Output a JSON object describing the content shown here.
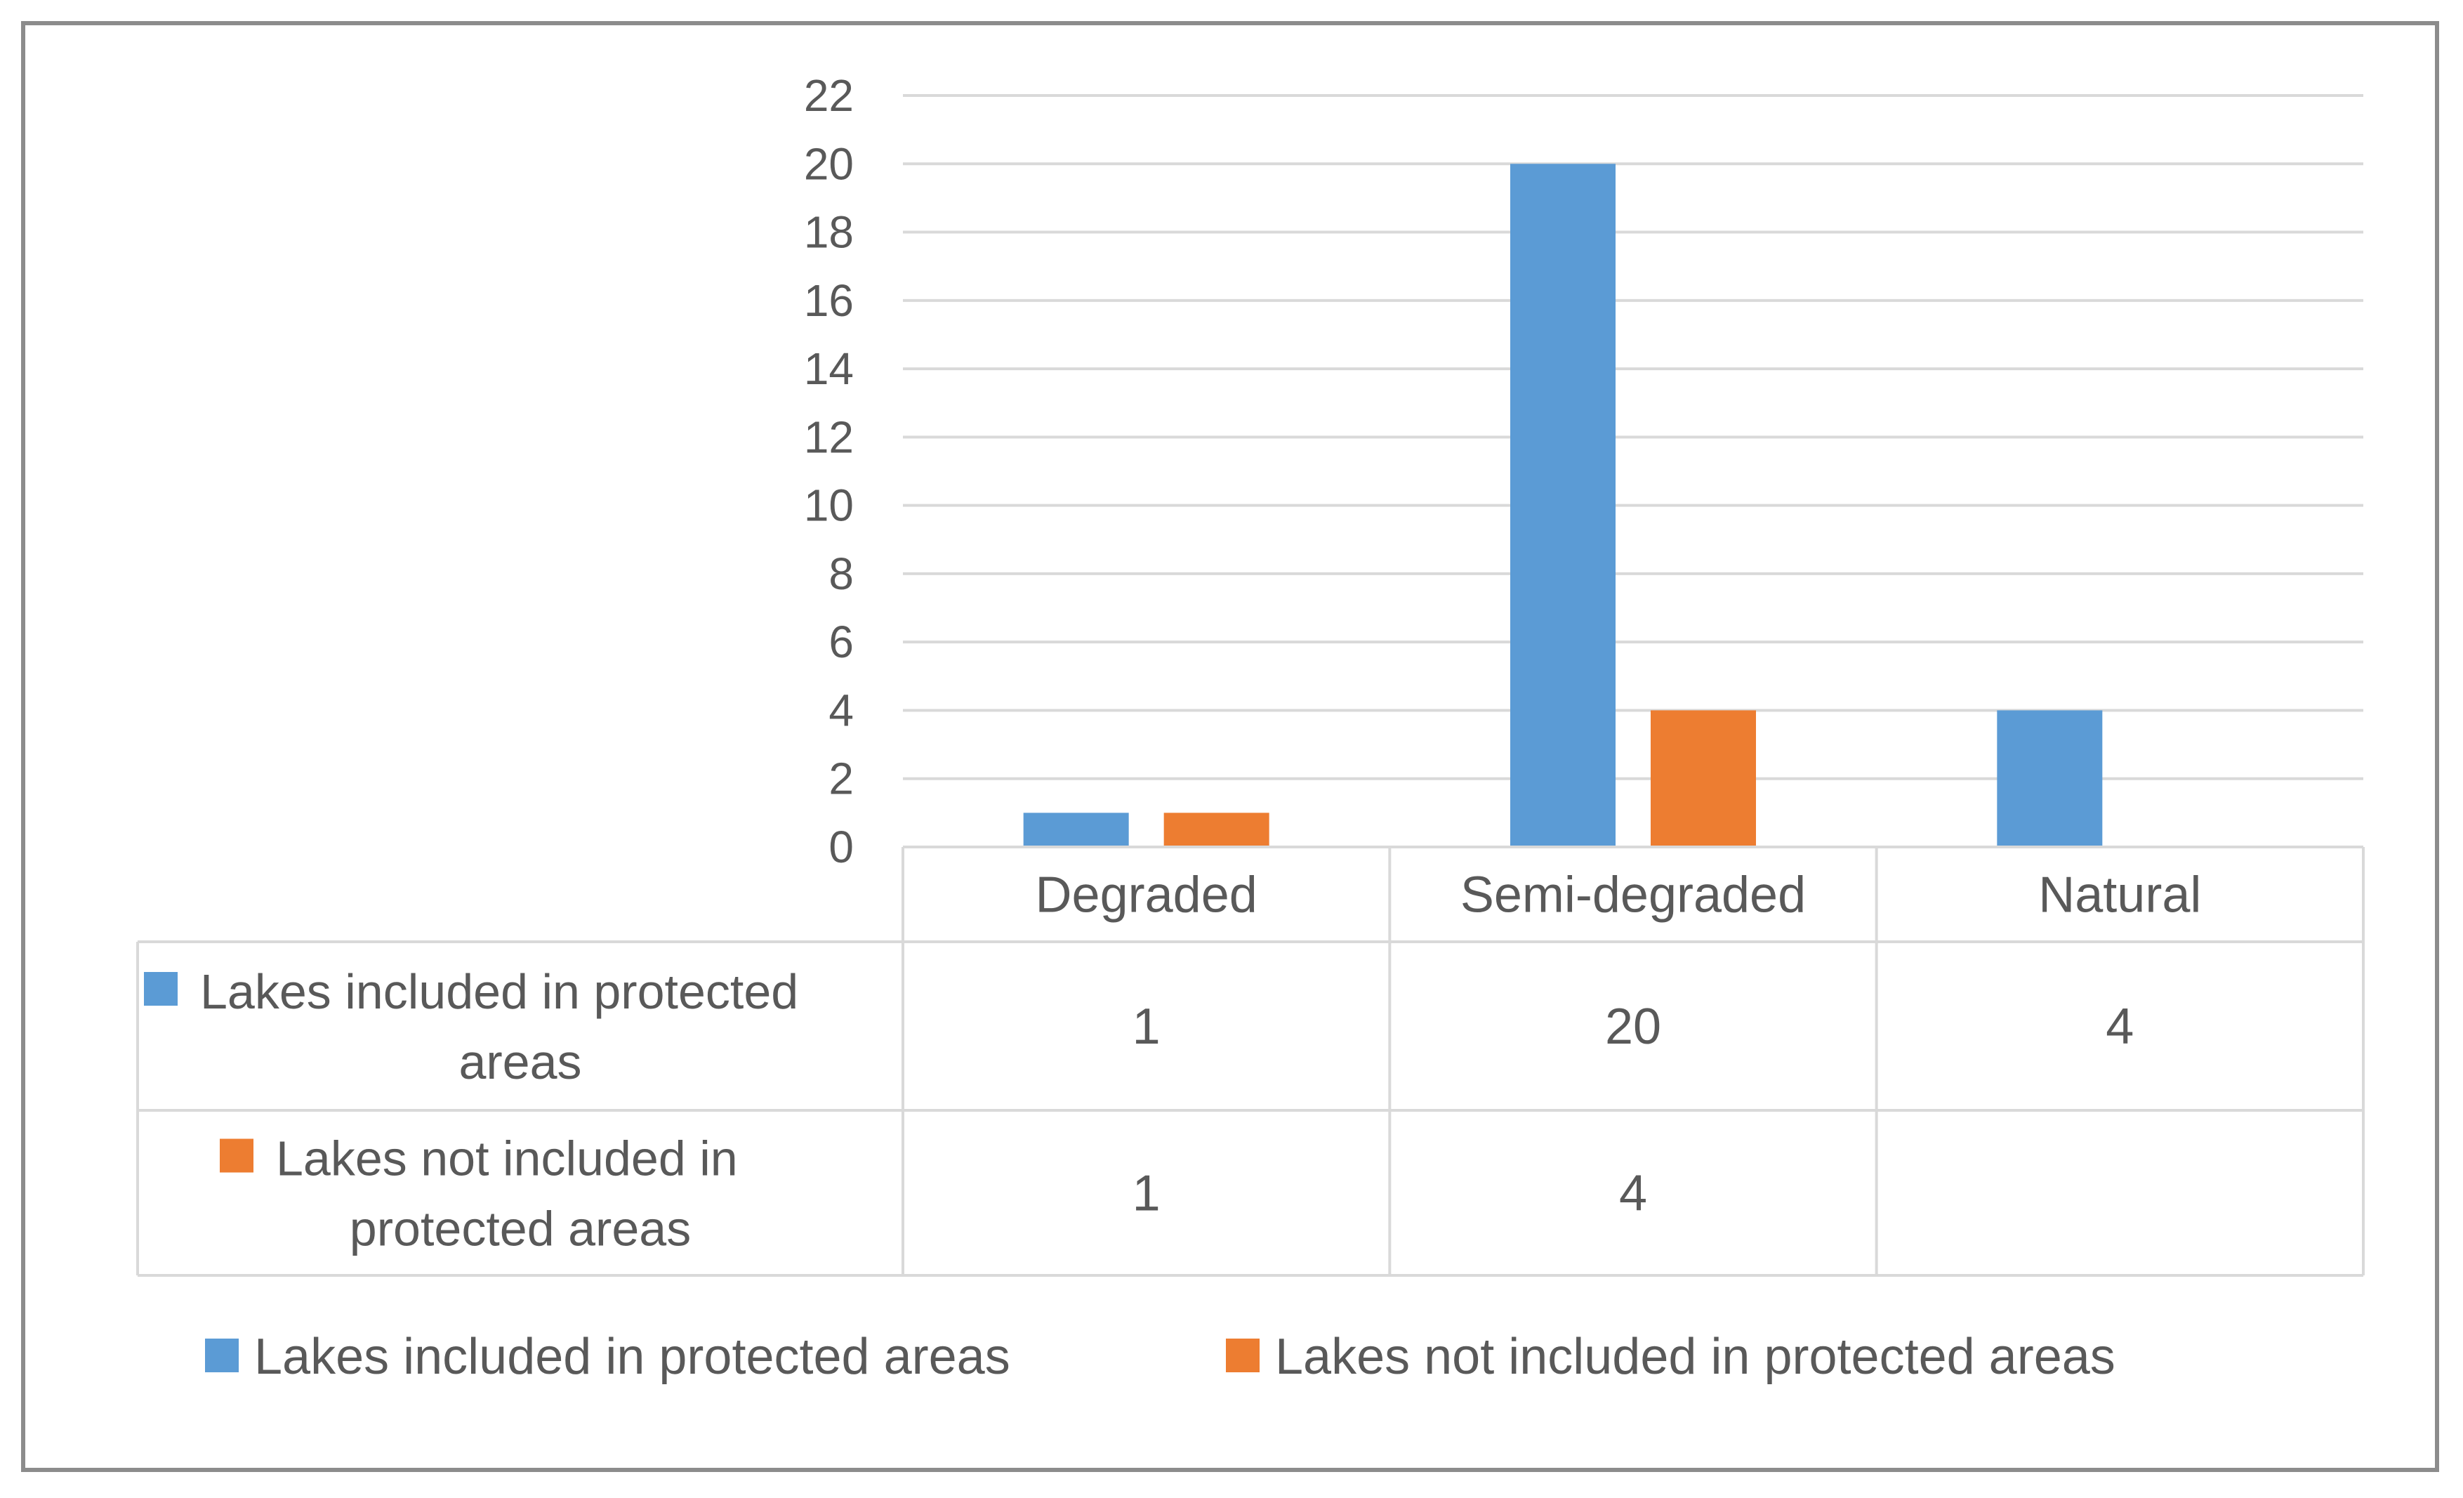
{
  "chart_data": {
    "type": "bar",
    "title": "",
    "xlabel": "",
    "ylabel": "",
    "ylim": [
      0,
      22
    ],
    "yticks": [
      0,
      2,
      4,
      6,
      8,
      10,
      12,
      14,
      16,
      18,
      20,
      22
    ],
    "categories": [
      "Degraded",
      "Semi-degraded",
      "Natural"
    ],
    "series": [
      {
        "name": "Lakes included in protected areas",
        "label_lines": [
          "Lakes included in protected",
          "areas"
        ],
        "color": "#5b9bd5",
        "values": [
          1,
          20,
          4
        ]
      },
      {
        "name": "Lakes not included in protected areas",
        "label_lines": [
          "Lakes not included in",
          "protected areas"
        ],
        "color": "#ed7d31",
        "values": [
          1,
          4,
          null
        ]
      }
    ],
    "grid": true,
    "legend_position": "bottom",
    "data_table": true
  }
}
